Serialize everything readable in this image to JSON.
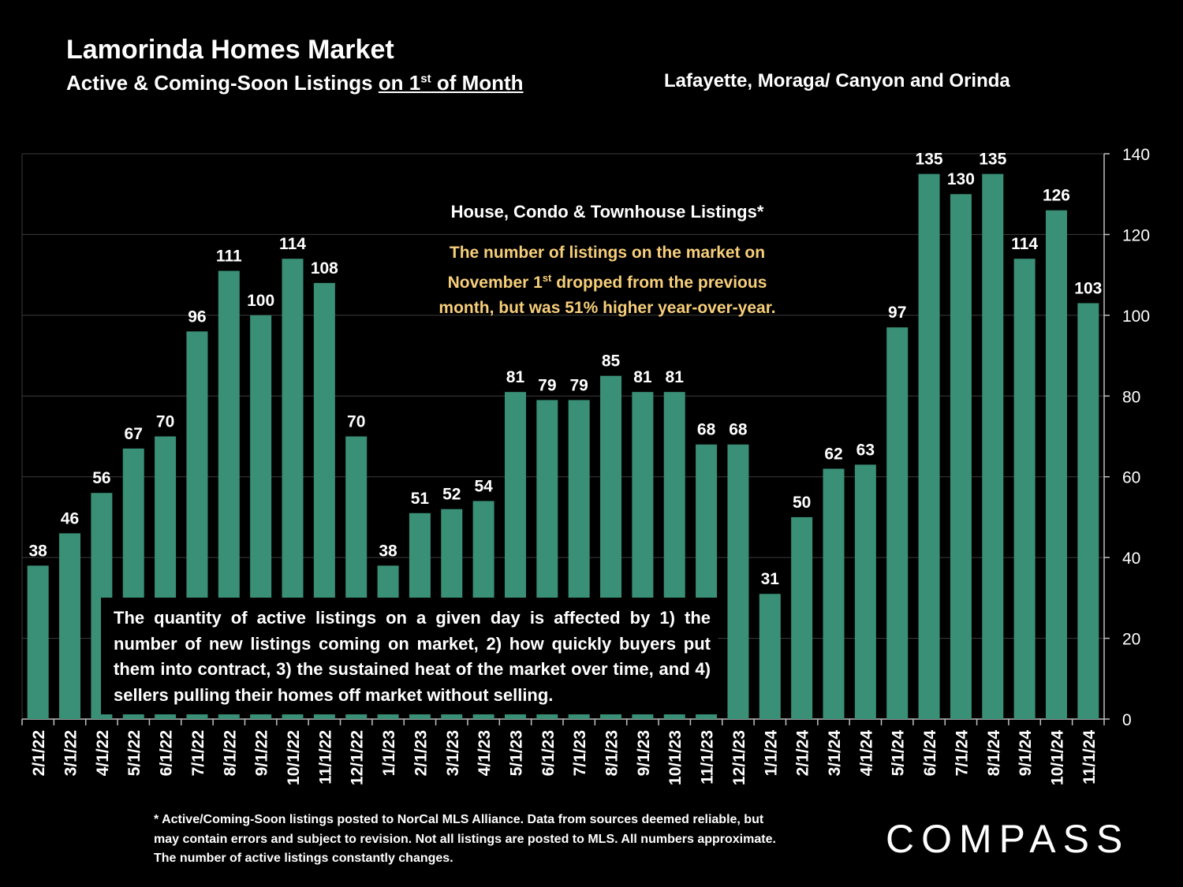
{
  "header": {
    "title": "Lamorinda Homes Market",
    "subtitle_pre": "Active & Coming-Soon Listings ",
    "subtitle_u1": "on 1",
    "subtitle_sup": "st",
    "subtitle_u2": " of Month",
    "region": "Lafayette, Moraga/ Canyon and Orinda"
  },
  "notes": {
    "heading": "House, Condo & Townhouse Listings*",
    "gold_1": "The number of listings on the market on",
    "gold_2a": "November 1",
    "gold_2sup": "st",
    "gold_2b": " dropped from the previous",
    "gold_3": "month, but was 51% higher year-over-year.",
    "box": "The quantity of active listings on a given day is affected by 1) the number of new listings coming on market, 2) how quickly buyers put them into contract, 3) the sustained heat of the market over time, and 4) sellers pulling their homes off market without selling."
  },
  "footnote": "* Active/Coming-Soon listings posted to NorCal MLS Alliance.  Data from sources deemed reliable, but may contain errors and subject to revision.  Not all listings are posted to MLS. All numbers approximate. The number of active listings constantly changes.",
  "brand": {
    "logo_text": "COMPASS"
  },
  "colors": {
    "background": "#000000",
    "bar": "#3a8f77",
    "highlight": "#f7cf7a",
    "grid": "#3c3c3c"
  },
  "chart_data": {
    "type": "bar",
    "categories": [
      "2/1/22",
      "3/1/22",
      "4/1/22",
      "5/1/22",
      "6/1/22",
      "7/1/22",
      "8/1/22",
      "9/1/22",
      "10/1/22",
      "11/1/22",
      "12/1/22",
      "1/1/23",
      "2/1/23",
      "3/1/23",
      "4/1/23",
      "5/1/23",
      "6/1/23",
      "7/1/23",
      "8/1/23",
      "9/1/23",
      "10/1/23",
      "11/1/23",
      "12/1/23",
      "1/1/24",
      "2/1/24",
      "3/1/24",
      "4/1/24",
      "5/1/24",
      "6/1/24",
      "7/1/24",
      "8/1/24",
      "9/1/24",
      "10/1/24",
      "11/1/24"
    ],
    "values": [
      38,
      46,
      56,
      67,
      70,
      96,
      111,
      100,
      114,
      108,
      70,
      38,
      51,
      52,
      54,
      81,
      79,
      79,
      85,
      81,
      81,
      68,
      68,
      31,
      50,
      62,
      63,
      97,
      135,
      130,
      135,
      114,
      126,
      103
    ],
    "ylim": [
      0,
      140
    ],
    "yticks": [
      0,
      20,
      40,
      60,
      80,
      100,
      120,
      140
    ],
    "y_axis_side": "right",
    "grid": true
  }
}
